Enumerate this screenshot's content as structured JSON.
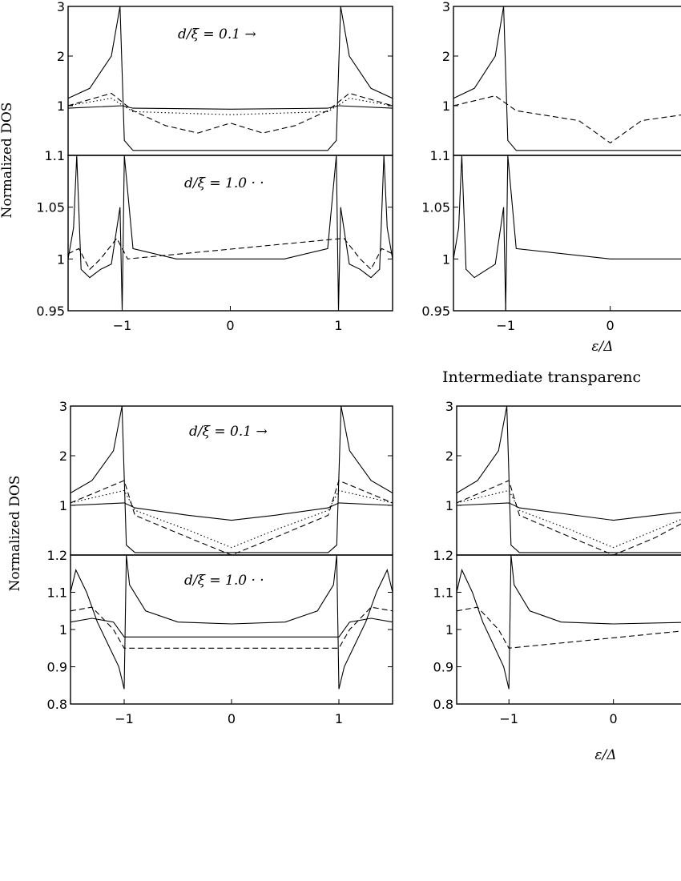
{
  "figure": {
    "ylabel": "Normalized DOS",
    "section_title": "Intermediate transparenc",
    "xlabel_right": "ε/Δ",
    "xlabel_right_bottom": "ε/Δ"
  },
  "chart_data": [
    {
      "type": "line",
      "panel": "top-left upper",
      "xlim": [
        -1.5,
        1.5
      ],
      "ylim": [
        0,
        3
      ],
      "yticks": [
        3,
        2,
        1
      ],
      "ytick_labels": [
        "3",
        "2",
        "1"
      ],
      "annotation": "d/ξ = 0.1 →",
      "series": [
        {
          "style": "solid",
          "x": [
            -1.5,
            -1.3,
            -1.1,
            -1.02,
            -0.98,
            -0.9,
            -0.5,
            0,
            0.5,
            0.9,
            0.98,
            1.02,
            1.1,
            1.3,
            1.5
          ],
          "y": [
            1.15,
            1.35,
            2.0,
            3.0,
            0.3,
            0.1,
            0.1,
            0.1,
            0.1,
            0.1,
            0.3,
            3.0,
            2.0,
            1.35,
            1.15
          ]
        },
        {
          "style": "solid",
          "x": [
            -1.5,
            -1.0,
            -0.9,
            0,
            0.9,
            1.0,
            1.5
          ],
          "y": [
            0.95,
            1.0,
            0.95,
            0.93,
            0.95,
            1.0,
            0.95
          ]
        },
        {
          "style": "dashed",
          "x": [
            -1.5,
            -1.1,
            -0.9,
            -0.6,
            -0.3,
            0,
            0.3,
            0.6,
            0.9,
            1.1,
            1.5
          ],
          "y": [
            1.0,
            1.25,
            0.9,
            0.6,
            0.45,
            0.65,
            0.45,
            0.6,
            0.9,
            1.25,
            1.0
          ]
        },
        {
          "style": "dotted",
          "x": [
            -1.5,
            -1.1,
            -0.9,
            0,
            0.9,
            1.1,
            1.5
          ],
          "y": [
            1.0,
            1.15,
            0.88,
            0.82,
            0.88,
            1.15,
            1.0
          ]
        }
      ]
    },
    {
      "type": "line",
      "panel": "top-left lower",
      "xlim": [
        -1.5,
        1.5
      ],
      "ylim": [
        0.95,
        1.1
      ],
      "yticks": [
        1.1,
        1.05,
        1,
        0.95
      ],
      "ytick_labels": [
        "1.1",
        "1.05",
        "1",
        "0.95"
      ],
      "xticks": [
        -1,
        0,
        1
      ],
      "xtick_labels": [
        "−1",
        "0",
        "1"
      ],
      "annotation": "d/ξ = 1.0 · ·",
      "series": [
        {
          "style": "solid",
          "x": [
            -1.5,
            -1.45,
            -1.42,
            -1.38,
            -1.3,
            -1.2,
            -1.1,
            -1.02,
            -1.0,
            -0.98,
            -0.9,
            -0.5,
            0,
            0.5,
            0.9,
            0.98,
            1.0,
            1.02,
            1.1,
            1.2,
            1.3,
            1.38,
            1.42,
            1.45,
            1.5
          ],
          "y": [
            1.0,
            1.03,
            1.1,
            0.99,
            0.982,
            0.99,
            0.995,
            1.05,
            0.95,
            1.1,
            1.01,
            1.0,
            1.0,
            1.0,
            1.01,
            1.1,
            0.95,
            1.05,
            0.995,
            0.99,
            0.982,
            0.99,
            1.1,
            1.03,
            1.0
          ]
        },
        {
          "style": "dashed",
          "x": [
            -1.5,
            -1.4,
            -1.3,
            -1.2,
            -1.05,
            -0.95,
            1.05,
            1.2,
            1.3,
            1.4,
            1.5
          ],
          "y": [
            1.005,
            1.01,
            0.99,
            1.0,
            1.02,
            1.0,
            1.02,
            1.0,
            0.99,
            1.01,
            1.005
          ]
        }
      ]
    },
    {
      "type": "line",
      "panel": "top-right upper",
      "xlim": [
        -1.5,
        0.8
      ],
      "ylim": [
        0,
        3
      ],
      "yticks": [
        3,
        2,
        1
      ],
      "ytick_labels": [
        "3",
        "2",
        "1"
      ],
      "series": [
        {
          "style": "solid",
          "x": [
            -1.5,
            -1.3,
            -1.1,
            -1.02,
            -0.98,
            -0.9,
            0,
            0.8
          ],
          "y": [
            1.15,
            1.35,
            2.0,
            3.0,
            0.3,
            0.1,
            0.1,
            0.1
          ]
        },
        {
          "style": "dashed",
          "x": [
            -1.5,
            -1.1,
            -0.9,
            -0.3,
            0,
            0.3,
            0.8
          ],
          "y": [
            1.0,
            1.2,
            0.9,
            0.7,
            0.25,
            0.7,
            0.85
          ]
        }
      ]
    },
    {
      "type": "line",
      "panel": "top-right lower",
      "xlim": [
        -1.5,
        0.8
      ],
      "ylim": [
        0.95,
        1.1
      ],
      "yticks": [
        1.1,
        1.05,
        1,
        0.95
      ],
      "ytick_labels": [
        "1.1",
        "1.05",
        "1",
        "0.95"
      ],
      "xticks": [
        -1,
        0
      ],
      "xtick_labels": [
        "−1",
        "0"
      ],
      "xlabel": "ε/Δ",
      "series": [
        {
          "style": "solid",
          "x": [
            -1.5,
            -1.45,
            -1.42,
            -1.38,
            -1.3,
            -1.1,
            -1.02,
            -1.0,
            -0.98,
            -0.9,
            0,
            0.8
          ],
          "y": [
            1.0,
            1.03,
            1.1,
            0.99,
            0.982,
            0.995,
            1.05,
            0.95,
            1.1,
            1.01,
            1.0,
            1.0
          ]
        }
      ]
    },
    {
      "type": "line",
      "panel": "bottom-left upper",
      "xlim": [
        -1.5,
        1.5
      ],
      "ylim": [
        0,
        3
      ],
      "yticks": [
        3,
        2,
        1
      ],
      "ytick_labels": [
        "3",
        "2",
        "1"
      ],
      "annotation": "d/ξ = 0.1 →",
      "series": [
        {
          "style": "solid",
          "x": [
            -1.5,
            -1.3,
            -1.1,
            -1.02,
            -0.98,
            -0.9,
            0,
            0.9,
            0.98,
            1.02,
            1.1,
            1.3,
            1.5
          ],
          "y": [
            1.25,
            1.5,
            2.1,
            3.0,
            0.2,
            0.05,
            0.05,
            0.05,
            0.2,
            3.0,
            2.1,
            1.5,
            1.25
          ]
        },
        {
          "style": "solid",
          "x": [
            -1.5,
            -1.0,
            -0.9,
            -0.4,
            0,
            0.4,
            0.9,
            1.0,
            1.5
          ],
          "y": [
            1.0,
            1.05,
            0.95,
            0.8,
            0.7,
            0.8,
            0.95,
            1.05,
            1.0
          ]
        },
        {
          "style": "dashed",
          "x": [
            -1.5,
            -1.0,
            -0.9,
            -0.4,
            0,
            0.4,
            0.9,
            1.0,
            1.5
          ],
          "y": [
            1.05,
            1.5,
            0.8,
            0.35,
            0.0,
            0.35,
            0.8,
            1.5,
            1.05
          ]
        },
        {
          "style": "dotted",
          "x": [
            -1.5,
            -1.0,
            -0.9,
            -0.4,
            0,
            0.4,
            0.9,
            1.0,
            1.5
          ],
          "y": [
            1.05,
            1.3,
            0.9,
            0.5,
            0.15,
            0.5,
            0.9,
            1.3,
            1.05
          ]
        }
      ]
    },
    {
      "type": "line",
      "panel": "bottom-left lower",
      "xlim": [
        -1.5,
        1.5
      ],
      "ylim": [
        0.8,
        1.2
      ],
      "yticks": [
        1.2,
        1.1,
        1,
        0.9,
        0.8
      ],
      "ytick_labels": [
        "1.2",
        "1.1",
        "1",
        "0.9",
        "0.8"
      ],
      "xticks": [
        -1,
        0,
        1
      ],
      "xtick_labels": [
        "−1",
        "0",
        "1"
      ],
      "annotation": "d/ξ = 1.0 · ·",
      "series": [
        {
          "style": "solid",
          "x": [
            -1.5,
            -1.45,
            -1.35,
            -1.25,
            -1.15,
            -1.05,
            -1.0,
            -0.98,
            -0.95,
            -0.8,
            -0.5,
            0,
            0.5,
            0.8,
            0.95,
            0.98,
            1.0,
            1.05,
            1.15,
            1.25,
            1.35,
            1.45,
            1.5
          ],
          "y": [
            1.1,
            1.16,
            1.1,
            1.02,
            0.96,
            0.9,
            0.84,
            1.2,
            1.12,
            1.05,
            1.02,
            1.015,
            1.02,
            1.05,
            1.12,
            1.2,
            0.84,
            0.9,
            0.96,
            1.02,
            1.1,
            1.16,
            1.1
          ]
        },
        {
          "style": "dashed",
          "x": [
            -1.5,
            -1.3,
            -1.1,
            -1.0,
            1.0,
            1.1,
            1.3,
            1.5
          ],
          "y": [
            1.05,
            1.06,
            1.0,
            0.95,
            0.95,
            1.0,
            1.06,
            1.05
          ]
        },
        {
          "style": "solid",
          "x": [
            -1.5,
            -1.3,
            -1.1,
            -1.0,
            1.0,
            1.1,
            1.3,
            1.5
          ],
          "y": [
            1.02,
            1.03,
            1.02,
            0.98,
            0.98,
            1.02,
            1.03,
            1.02
          ]
        }
      ]
    },
    {
      "type": "line",
      "panel": "bottom-right upper",
      "xlim": [
        -1.5,
        0.8
      ],
      "ylim": [
        0,
        3
      ],
      "yticks": [
        3,
        2,
        1
      ],
      "ytick_labels": [
        "3",
        "2",
        "1"
      ],
      "series": [
        {
          "style": "solid",
          "x": [
            -1.5,
            -1.3,
            -1.1,
            -1.02,
            -0.98,
            -0.9,
            0,
            0.8
          ],
          "y": [
            1.25,
            1.5,
            2.1,
            3.0,
            0.2,
            0.05,
            0.05,
            0.05
          ]
        },
        {
          "style": "solid",
          "x": [
            -1.5,
            -1.0,
            -0.9,
            0,
            0.8
          ],
          "y": [
            1.0,
            1.05,
            0.95,
            0.7,
            0.9
          ]
        },
        {
          "style": "dashed",
          "x": [
            -1.5,
            -1.0,
            -0.9,
            -0.4,
            0,
            0.4,
            0.8
          ],
          "y": [
            1.05,
            1.5,
            0.8,
            0.35,
            0.0,
            0.35,
            0.8
          ]
        },
        {
          "style": "dotted",
          "x": [
            -1.5,
            -1.0,
            -0.9,
            -0.4,
            0,
            0.4,
            0.8
          ],
          "y": [
            1.05,
            1.3,
            0.9,
            0.5,
            0.15,
            0.5,
            0.85
          ]
        }
      ]
    },
    {
      "type": "line",
      "panel": "bottom-right lower",
      "xlim": [
        -1.5,
        0.8
      ],
      "ylim": [
        0.8,
        1.2
      ],
      "yticks": [
        1.2,
        1.1,
        1,
        0.9,
        0.8
      ],
      "ytick_labels": [
        "1.2",
        "1.1",
        "1",
        "0.9",
        "0.8"
      ],
      "xticks": [
        -1,
        0
      ],
      "xtick_labels": [
        "−1",
        "0"
      ],
      "xlabel": "ε/Δ",
      "series": [
        {
          "style": "solid",
          "x": [
            -1.5,
            -1.45,
            -1.35,
            -1.25,
            -1.15,
            -1.05,
            -1.0,
            -0.98,
            -0.95,
            -0.8,
            -0.5,
            0,
            0.8
          ],
          "y": [
            1.1,
            1.16,
            1.1,
            1.02,
            0.96,
            0.9,
            0.84,
            1.2,
            1.12,
            1.05,
            1.02,
            1.015,
            1.02
          ]
        },
        {
          "style": "dashed",
          "x": [
            -1.5,
            -1.3,
            -1.1,
            -1.0,
            0.8
          ],
          "y": [
            1.05,
            1.06,
            1.0,
            0.95,
            1.0
          ]
        }
      ]
    }
  ]
}
